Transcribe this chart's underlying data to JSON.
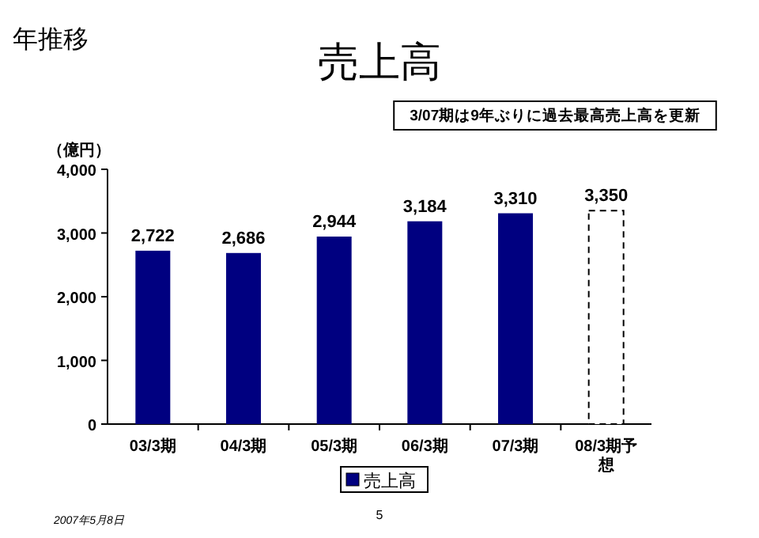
{
  "chart_data": {
    "type": "bar",
    "title": "売上高",
    "ylabel": "（億円）",
    "categories": [
      "03/3期",
      "04/3期",
      "05/3期",
      "06/3期",
      "07/3期",
      "08/3期予想"
    ],
    "series": [
      {
        "name": "売上高",
        "color": "#000080",
        "values": [
          2722,
          2686,
          2944,
          3184,
          3310,
          3350
        ],
        "colors": [
          "#000080",
          "#000080",
          "#000080",
          "#000080",
          "#000080",
          "#ffffff"
        ],
        "value_labels": [
          "2,722",
          "2,686",
          "2,944",
          "3,184",
          "3,310",
          "3,350"
        ]
      }
    ],
    "ylim": [
      0,
      4000
    ],
    "yticks": [
      0,
      {
        "value": 1000,
        "label": "1,000"
      },
      {
        "value": 2000,
        "label": "2,000"
      },
      {
        "value": 3000,
        "label": "3,000"
      },
      {
        "value": 4000,
        "label": "4,000"
      }
    ],
    "legend": "bottom",
    "grid": false,
    "annotations": [
      "年推移",
      "3/07期は9年ぶりに過去最高売上高を更新",
      "2007年5月8日",
      "5"
    ]
  }
}
